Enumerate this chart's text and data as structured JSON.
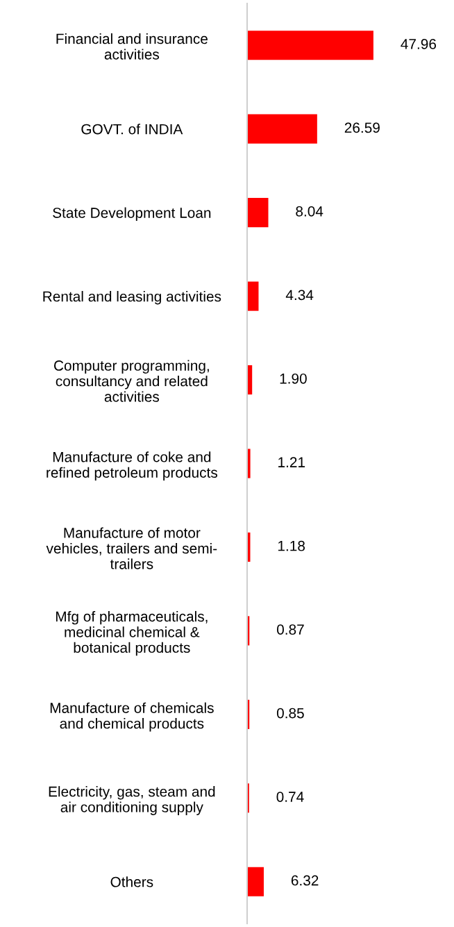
{
  "chart_data": {
    "type": "bar",
    "orientation": "horizontal",
    "categories": [
      "Financial and insurance\nactivities",
      "GOVT. of INDIA",
      "State Development Loan",
      "Rental and leasing activities",
      "Computer programming,\nconsultancy and related\nactivities",
      "Manufacture of coke and\nrefined petroleum products",
      "Manufacture of motor\nvehicles, trailers and semi-\ntrailers",
      "Mfg of pharmaceuticals,\nmedicinal chemical &\nbotanical products",
      "Manufacture of chemicals\nand chemical products",
      "Electricity, gas, steam and\nair conditioning supply",
      "Others"
    ],
    "values": [
      47.96,
      26.59,
      8.04,
      4.34,
      1.9,
      1.21,
      1.18,
      0.87,
      0.85,
      0.74,
      6.32
    ],
    "value_labels": [
      "47.96",
      "26.59",
      "8.04",
      "4.34",
      "1.90",
      "1.21",
      "1.18",
      "0.87",
      "0.85",
      "0.74",
      "6.32"
    ],
    "color": "#ff0000",
    "tick_labels": "y",
    "grid": false,
    "legend": false
  }
}
